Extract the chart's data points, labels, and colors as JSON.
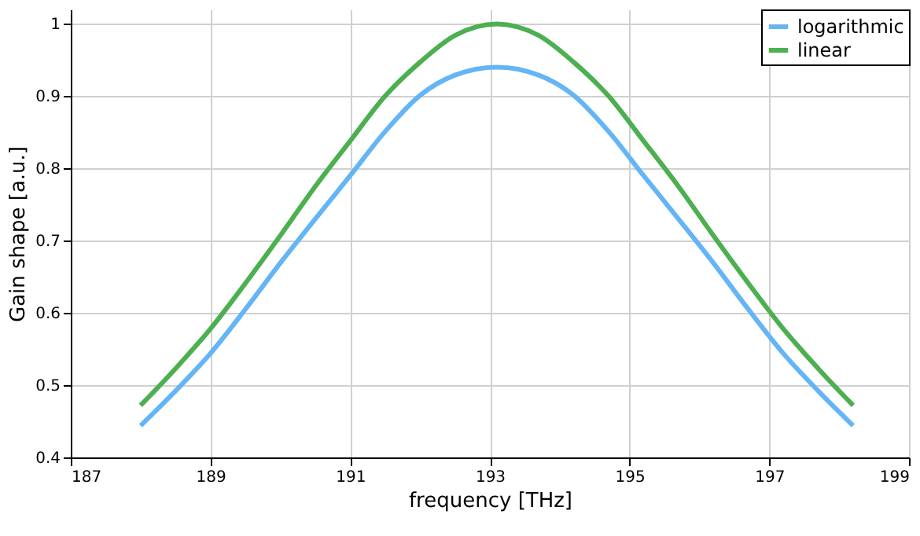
{
  "chart_data": {
    "type": "line",
    "xlabel": "frequency [THz]",
    "ylabel": "Gain shape [a.u.]",
    "xlim": [
      187,
      199
    ],
    "xticks": [
      187,
      189,
      191,
      193,
      195,
      197,
      199
    ],
    "ylim": [
      0.4,
      1.02
    ],
    "yticks": [
      0.4,
      0.5,
      0.6,
      0.7,
      0.8,
      0.9,
      {
        "value": 1,
        "label": "1"
      }
    ],
    "grid": true,
    "legend": "top right",
    "line_style": "solid",
    "marker": "none",
    "x": [
      188,
      188.5,
      189,
      189.5,
      190,
      190.5,
      191,
      191.5,
      192,
      192.5,
      193.1,
      193.7,
      194.2,
      194.7,
      195.2,
      195.7,
      196.2,
      196.7,
      197.2,
      197.7,
      198.2
    ],
    "series": [
      {
        "name": "logarithmic",
        "color": "#64b5f6",
        "values": [
          0.444,
          0.492,
          0.544,
          0.605,
          0.669,
          0.73,
          0.79,
          0.851,
          0.901,
          0.929,
          0.94,
          0.929,
          0.901,
          0.851,
          0.79,
          0.73,
          0.669,
          0.605,
          0.544,
          0.492,
          0.444
        ]
      },
      {
        "name": "linear",
        "color": "#4caf50",
        "values": [
          0.472,
          0.523,
          0.578,
          0.641,
          0.707,
          0.775,
          0.838,
          0.9,
          0.947,
          0.984,
          1.0,
          0.984,
          0.947,
          0.9,
          0.838,
          0.775,
          0.707,
          0.641,
          0.578,
          0.523,
          0.472
        ]
      }
    ]
  }
}
